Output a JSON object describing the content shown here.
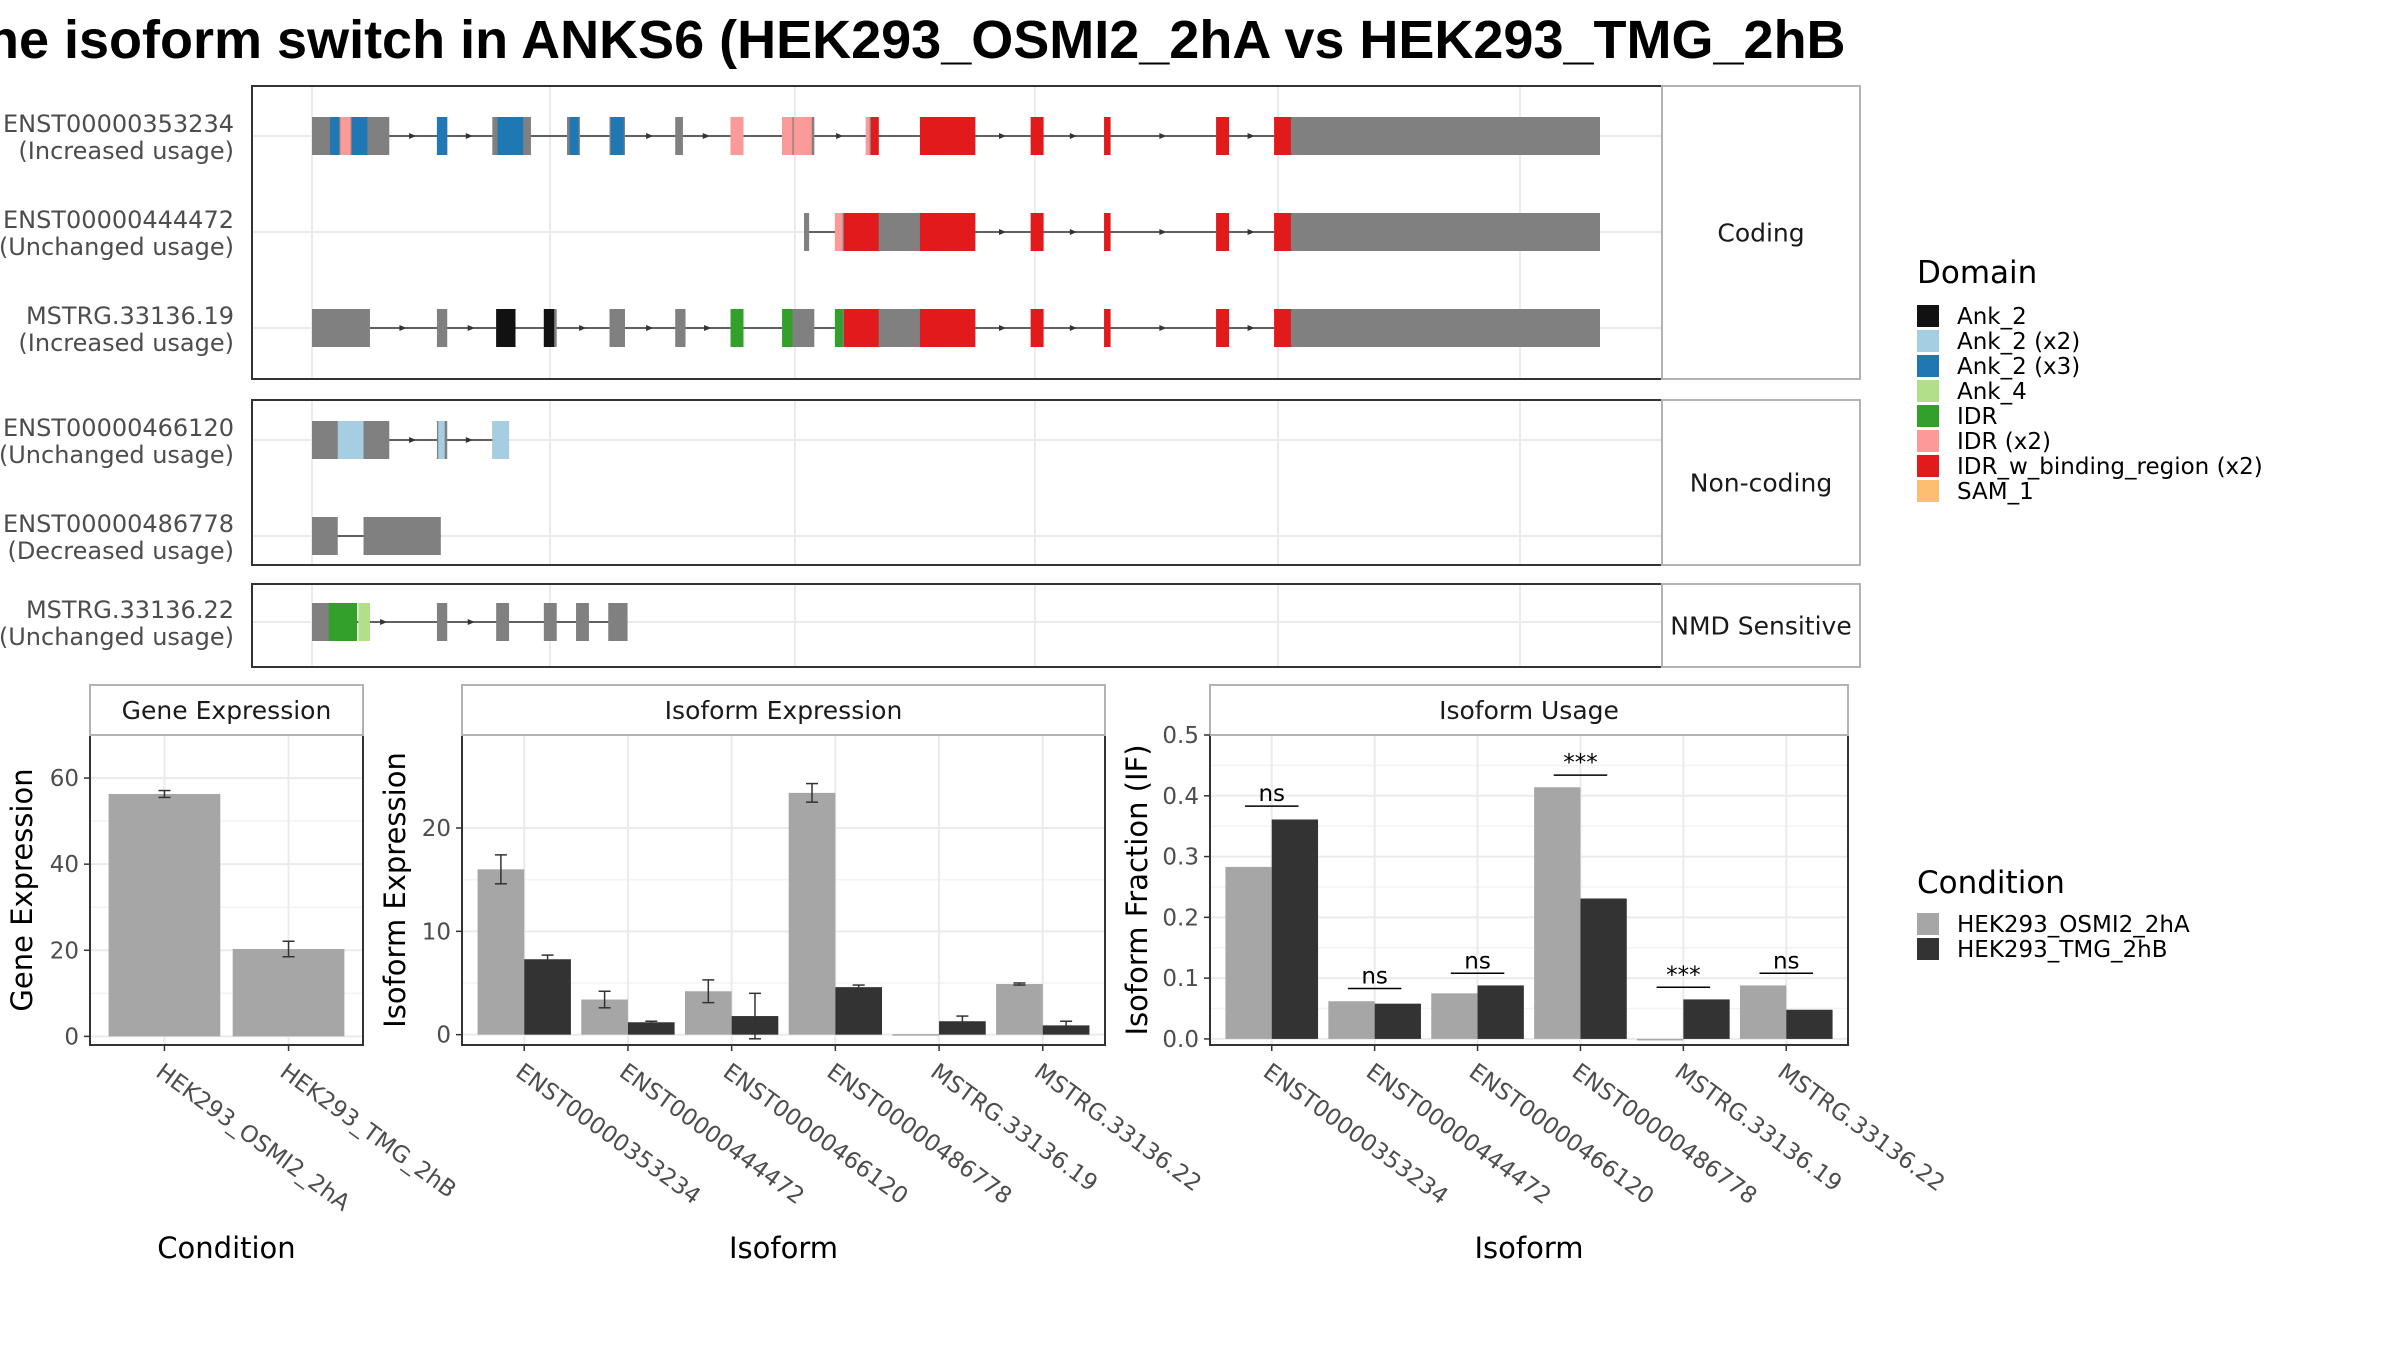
{
  "title": "he isoform switch in ANKS6 (HEK293_OSMI2_2hA vs HEK293_TMG_2hB",
  "colors": {
    "exon": "#808080",
    "intron": "#333333",
    "grid": "#ebebeb",
    "strip_fill": "#ffffff",
    "strip_border": "#b3b3b3",
    "cond1": "#a6a6a6",
    "cond2": "#333333"
  },
  "chart_data": [
    {
      "type": "gene-structure",
      "genomic_range": [
        0,
        1000
      ],
      "categories": [
        {
          "name": "Coding",
          "rows": [
            0,
            1,
            2
          ]
        },
        {
          "name": "Non-coding",
          "rows": [
            3,
            4
          ]
        },
        {
          "name": "NMD Sensitive",
          "rows": [
            5
          ]
        }
      ],
      "transcripts": [
        {
          "id": "ENST00000353234",
          "usage": "(Increased usage)",
          "exons": [
            [
              0,
              60
            ],
            [
              97,
              105
            ],
            [
              140,
              170
            ],
            [
              198,
              208
            ],
            [
              231,
              243
            ],
            [
              282,
              288
            ],
            [
              325,
              335
            ],
            [
              365,
              390
            ],
            [
              430,
              440
            ],
            [
              472,
              515
            ],
            [
              558,
              568
            ],
            [
              615,
              620
            ],
            [
              702,
              712
            ],
            [
              747,
              1000
            ]
          ],
          "domains": [
            [
              14,
              21,
              "Ank_2 (x3)"
            ],
            [
              22,
              30,
              "IDR (x2)"
            ],
            [
              31,
              43,
              "Ank_2 (x3)"
            ],
            [
              97,
              105,
              "Ank_2 (x3)"
            ],
            [
              144,
              164,
              "Ank_2 (x3)"
            ],
            [
              200,
              207,
              "Ank_2 (x3)"
            ],
            [
              232,
              242,
              "Ank_2 (x3)"
            ],
            [
              325,
              335,
              "IDR (x2)"
            ],
            [
              365,
              373,
              "IDR (x2)"
            ],
            [
              374,
              388,
              "IDR (x2)"
            ],
            [
              430,
              433,
              "IDR (x2)"
            ],
            [
              434,
              440,
              "IDR_w_binding_region (x2)"
            ],
            [
              472,
              515,
              "IDR_w_binding_region (x2)"
            ],
            [
              558,
              568,
              "IDR_w_binding_region (x2)"
            ],
            [
              615,
              620,
              "IDR_w_binding_region (x2)"
            ],
            [
              702,
              712,
              "IDR_w_binding_region (x2)"
            ],
            [
              747,
              760,
              "IDR_w_binding_region (x2)"
            ]
          ]
        },
        {
          "id": "ENST00000444472",
          "usage": "(Unchanged usage)",
          "exons": [
            [
              382,
              386
            ],
            [
              406,
              515
            ],
            [
              558,
              568
            ],
            [
              615,
              620
            ],
            [
              702,
              712
            ],
            [
              747,
              1000
            ]
          ],
          "domains": [
            [
              406,
              412,
              "IDR (x2)"
            ],
            [
              413,
              440,
              "IDR_w_binding_region (x2)"
            ],
            [
              472,
              515,
              "IDR_w_binding_region (x2)"
            ],
            [
              558,
              568,
              "IDR_w_binding_region (x2)"
            ],
            [
              615,
              620,
              "IDR_w_binding_region (x2)"
            ],
            [
              702,
              712,
              "IDR_w_binding_region (x2)"
            ],
            [
              747,
              760,
              "IDR_w_binding_region (x2)"
            ]
          ]
        },
        {
          "id": "MSTRG.33136.19",
          "usage": "(Increased usage)",
          "exons": [
            [
              0,
              45
            ],
            [
              97,
              105
            ],
            [
              143,
              158
            ],
            [
              180,
              190
            ],
            [
              231,
              243
            ],
            [
              282,
              290
            ],
            [
              325,
              335
            ],
            [
              365,
              390
            ],
            [
              406,
              515
            ],
            [
              558,
              568
            ],
            [
              615,
              620
            ],
            [
              702,
              712
            ],
            [
              747,
              1000
            ]
          ],
          "domains": [
            [
              143,
              158,
              "Ank_2"
            ],
            [
              180,
              188,
              "Ank_2"
            ],
            [
              325,
              335,
              "IDR"
            ],
            [
              365,
              373,
              "IDR"
            ],
            [
              406,
              412,
              "IDR"
            ],
            [
              413,
              440,
              "IDR_w_binding_region (x2)"
            ],
            [
              472,
              515,
              "IDR_w_binding_region (x2)"
            ],
            [
              558,
              568,
              "IDR_w_binding_region (x2)"
            ],
            [
              615,
              620,
              "IDR_w_binding_region (x2)"
            ],
            [
              702,
              712,
              "IDR_w_binding_region (x2)"
            ],
            [
              747,
              760,
              "IDR_w_binding_region (x2)"
            ]
          ]
        },
        {
          "id": "ENST00000466120",
          "usage": "(Unchanged usage)",
          "exons": [
            [
              0,
              60
            ],
            [
              97,
              105
            ],
            [
              140,
              153
            ]
          ],
          "domains": [
            [
              20,
              40,
              "Ank_2 (x2)"
            ],
            [
              98,
              103,
              "Ank_2 (x2)"
            ],
            [
              140,
              153,
              "Ank_2 (x2)"
            ]
          ]
        },
        {
          "id": "ENST00000486778",
          "usage": "(Decreased usage)",
          "exons": [
            [
              0,
              20
            ],
            [
              40,
              100
            ]
          ],
          "domains": []
        },
        {
          "id": "MSTRG.33136.22",
          "usage": "(Unchanged usage)",
          "exons": [
            [
              0,
              15
            ],
            [
              97,
              105
            ],
            [
              143,
              153
            ],
            [
              180,
              190
            ],
            [
              205,
              215
            ],
            [
              230,
              245
            ]
          ],
          "domains": [
            [
              13,
              35,
              "IDR"
            ],
            [
              36,
              45,
              "Ank_4"
            ]
          ]
        }
      ]
    },
    {
      "type": "bar",
      "title": "Gene Expression",
      "xlabel": "Condition",
      "ylabel": "Gene Expression",
      "ylim": [
        -2,
        70
      ],
      "yticks": [
        0,
        20,
        40,
        60
      ],
      "categories": [
        "HEK293_OSMI2_2hA",
        "HEK293_TMG_2hB"
      ],
      "values": [
        56.3,
        20.3
      ],
      "errors": [
        0.8,
        1.8
      ]
    },
    {
      "type": "bar",
      "title": "Isoform Expression",
      "xlabel": "Isoform",
      "ylabel": "Isoform Expression",
      "ylim": [
        -1,
        29
      ],
      "yticks": [
        0,
        10,
        20
      ],
      "categories": [
        "ENST00000353234",
        "ENST00000444472",
        "ENST00000466120",
        "ENST00000486778",
        "MSTRG.33136.19",
        "MSTRG.33136.22"
      ],
      "series": [
        {
          "name": "HEK293_OSMI2_2hA",
          "values": [
            16.0,
            3.4,
            4.2,
            23.4,
            0.05,
            4.9
          ],
          "errors": [
            1.4,
            0.8,
            1.1,
            0.9,
            0,
            0.1
          ]
        },
        {
          "name": "HEK293_TMG_2hB",
          "values": [
            7.3,
            1.2,
            1.8,
            4.6,
            1.3,
            0.9
          ],
          "errors": [
            0.4,
            0.1,
            2.2,
            0.2,
            0.5,
            0.4
          ]
        }
      ]
    },
    {
      "type": "bar",
      "title": "Isoform Usage",
      "xlabel": "Isoform",
      "ylabel": "Isoform Fraction (IF)",
      "ylim": [
        -0.01,
        0.5
      ],
      "yticks": [
        0.0,
        0.1,
        0.2,
        0.3,
        0.4,
        0.5
      ],
      "categories": [
        "ENST00000353234",
        "ENST00000444472",
        "ENST00000466120",
        "ENST00000486778",
        "MSTRG.33136.19",
        "MSTRG.33136.22"
      ],
      "series": [
        {
          "name": "HEK293_OSMI2_2hA",
          "values": [
            0.283,
            0.062,
            0.075,
            0.414,
            0.0,
            0.088
          ]
        },
        {
          "name": "HEK293_TMG_2hB",
          "values": [
            0.361,
            0.058,
            0.088,
            0.231,
            0.065,
            0.048
          ]
        }
      ],
      "significance": [
        {
          "label": "ns",
          "y": 0.383
        },
        {
          "label": "ns",
          "y": 0.083
        },
        {
          "label": "ns",
          "y": 0.108
        },
        {
          "label": "***",
          "y": 0.434
        },
        {
          "label": "***",
          "y": 0.085
        },
        {
          "label": "ns",
          "y": 0.108
        }
      ]
    }
  ],
  "legends": {
    "domain": {
      "title": "Domain",
      "items": [
        {
          "label": "Ank_2",
          "color": "#111111"
        },
        {
          "label": "Ank_2 (x2)",
          "color": "#a6cee3"
        },
        {
          "label": "Ank_2 (x3)",
          "color": "#1f78b4"
        },
        {
          "label": "Ank_4",
          "color": "#b2df8a"
        },
        {
          "label": "IDR",
          "color": "#33a02c"
        },
        {
          "label": "IDR (x2)",
          "color": "#fb9a99"
        },
        {
          "label": "IDR_w_binding_region (x2)",
          "color": "#e31a1c"
        },
        {
          "label": "SAM_1",
          "color": "#fdbf6f"
        }
      ]
    },
    "condition": {
      "title": "Condition",
      "items": [
        {
          "label": "HEK293_OSMI2_2hA",
          "color": "#a6a6a6"
        },
        {
          "label": "HEK293_TMG_2hB",
          "color": "#333333"
        }
      ]
    }
  }
}
